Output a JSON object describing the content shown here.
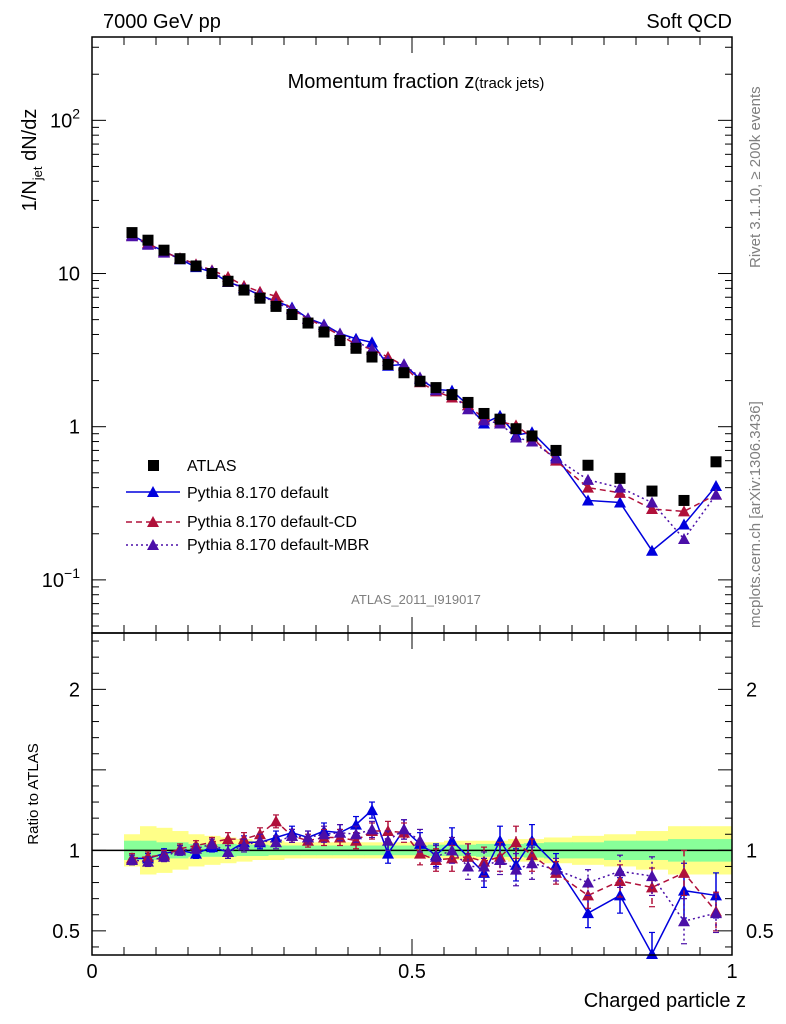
{
  "header": {
    "energy_label": "7000 GeV pp",
    "process_label": "Soft QCD"
  },
  "side_labels": {
    "rivet": "Rivet 3.1.10, ≥ 200k events",
    "mcplots": "mcplots.cern.ch [arXiv:1306.3436]"
  },
  "colors": {
    "atlas": "#000000",
    "default": "#0000dd",
    "cd": "#b0103a",
    "mbr": "#4b0fa8",
    "band_inner": "#88ff99",
    "band_outer": "#ffff88"
  },
  "chart_data": [
    {
      "type": "scatter",
      "title_main": "Momentum fraction z",
      "title_sub": "(track jets)",
      "ylabel_main": "1/N",
      "ylabel_sub": "jet",
      "ylabel_tail": " dN/dz",
      "analysis_id": "ATLAS_2011_I919017",
      "yscale": "log",
      "xlim": [
        0,
        1
      ],
      "ylim": [
        0.045,
        350
      ],
      "yticks": [
        {
          "value": 0.1,
          "base": "10",
          "exp": "−1"
        },
        {
          "value": 1,
          "base": "1",
          "exp": ""
        },
        {
          "value": 10,
          "base": "10",
          "exp": ""
        },
        {
          "value": 100,
          "base": "10",
          "exp": "2"
        }
      ],
      "x": [
        0.0625,
        0.0875,
        0.1125,
        0.1375,
        0.1625,
        0.1875,
        0.2125,
        0.2375,
        0.2625,
        0.2875,
        0.3125,
        0.3375,
        0.3625,
        0.3875,
        0.4125,
        0.4375,
        0.4625,
        0.4875,
        0.5125,
        0.5375,
        0.5625,
        0.5875,
        0.6125,
        0.6375,
        0.6625,
        0.6875,
        0.725,
        0.775,
        0.825,
        0.875,
        0.925,
        0.975
      ],
      "series": [
        {
          "name": "ATLAS",
          "style": "data",
          "values": [
            18.5,
            16.5,
            14.2,
            12.5,
            11.2,
            10.0,
            8.9,
            7.8,
            6.9,
            6.1,
            5.4,
            4.75,
            4.15,
            3.65,
            3.25,
            2.85,
            2.55,
            2.25,
            1.98,
            1.8,
            1.62,
            1.44,
            1.22,
            1.12,
            0.97,
            0.87,
            0.7,
            0.56,
            0.46,
            0.38,
            0.33,
            0.59
          ]
        },
        {
          "name": "Pythia 8.170 default",
          "style": "solid",
          "values": [
            17.8,
            15.6,
            14.0,
            12.4,
            11.0,
            10.2,
            8.8,
            8.1,
            7.2,
            6.6,
            6.0,
            5.1,
            4.65,
            4.05,
            3.75,
            3.55,
            2.5,
            2.55,
            2.05,
            1.75,
            1.72,
            1.38,
            1.05,
            1.18,
            0.88,
            0.92,
            0.64,
            0.33,
            0.32,
            0.155,
            0.23,
            0.41
          ]
        },
        {
          "name": "Pythia 8.170 default-CD",
          "style": "dashed",
          "values": [
            17.6,
            15.8,
            13.8,
            12.6,
            11.5,
            10.5,
            9.5,
            8.3,
            7.6,
            7.1,
            5.85,
            5.05,
            4.5,
            3.95,
            3.45,
            3.2,
            2.85,
            2.5,
            1.95,
            1.7,
            1.55,
            1.38,
            1.13,
            1.08,
            1.02,
            0.85,
            0.6,
            0.4,
            0.37,
            0.29,
            0.28,
            0.36
          ]
        },
        {
          "name": "Pythia 8.170 default-MBR",
          "style": "dotted",
          "values": [
            17.5,
            15.4,
            13.7,
            12.5,
            11.3,
            10.4,
            8.8,
            8.0,
            7.3,
            6.4,
            5.9,
            5.1,
            4.6,
            4.05,
            3.6,
            3.2,
            2.7,
            2.55,
            2.1,
            1.73,
            1.62,
            1.3,
            1.1,
            1.05,
            0.85,
            0.8,
            0.62,
            0.45,
            0.4,
            0.32,
            0.185,
            0.36
          ]
        }
      ],
      "legend_position": "lower-left"
    },
    {
      "type": "scatter",
      "ylabel": "Ratio to ATLAS",
      "xlabel": "Charged particle z",
      "xlim": [
        0,
        1
      ],
      "ylim": [
        0.35,
        2.35
      ],
      "xticks": [
        {
          "value": 0,
          "label": "0"
        },
        {
          "value": 0.5,
          "label": "0.5"
        },
        {
          "value": 1,
          "label": "1"
        }
      ],
      "yticks": [
        {
          "value": 0.5,
          "label": "0.5"
        },
        {
          "value": 1,
          "label": "1"
        },
        {
          "value": 2,
          "label": "2"
        }
      ],
      "band_inner": [
        0.06,
        0.06,
        0.05,
        0.05,
        0.04,
        0.04,
        0.04,
        0.035,
        0.035,
        0.03,
        0.03,
        0.03,
        0.03,
        0.03,
        0.03,
        0.03,
        0.03,
        0.03,
        0.03,
        0.035,
        0.035,
        0.035,
        0.04,
        0.04,
        0.04,
        0.045,
        0.05,
        0.05,
        0.06,
        0.06,
        0.07,
        0.07
      ],
      "band_outer": [
        0.1,
        0.15,
        0.14,
        0.12,
        0.1,
        0.09,
        0.08,
        0.07,
        0.06,
        0.06,
        0.05,
        0.05,
        0.05,
        0.05,
        0.05,
        0.05,
        0.05,
        0.05,
        0.05,
        0.05,
        0.06,
        0.06,
        0.06,
        0.06,
        0.07,
        0.07,
        0.08,
        0.09,
        0.1,
        0.12,
        0.15,
        0.15
      ],
      "series": [
        {
          "name": "Pythia 8.170 default",
          "style": "solid",
          "values": [
            0.95,
            0.95,
            0.98,
            1.0,
            0.98,
            1.02,
            0.99,
            1.05,
            1.05,
            1.08,
            1.11,
            1.08,
            1.12,
            1.11,
            1.16,
            1.25,
            0.98,
            1.13,
            1.04,
            0.97,
            1.06,
            0.96,
            0.86,
            1.06,
            0.91,
            1.06,
            0.91,
            0.61,
            0.72,
            0.35,
            0.75,
            0.72
          ],
          "errors": [
            0.03,
            0.03,
            0.03,
            0.03,
            0.03,
            0.03,
            0.04,
            0.04,
            0.04,
            0.04,
            0.04,
            0.04,
            0.05,
            0.05,
            0.05,
            0.05,
            0.06,
            0.06,
            0.07,
            0.07,
            0.08,
            0.08,
            0.09,
            0.09,
            0.1,
            0.1,
            0.07,
            0.09,
            0.11,
            0.14,
            0.17,
            0.14
          ]
        },
        {
          "name": "Pythia 8.170 default-CD",
          "style": "dashed",
          "values": [
            0.95,
            0.96,
            0.97,
            1.01,
            1.03,
            1.05,
            1.07,
            1.07,
            1.1,
            1.18,
            1.09,
            1.06,
            1.08,
            1.08,
            1.06,
            1.12,
            1.12,
            1.11,
            0.98,
            0.94,
            0.95,
            0.96,
            0.93,
            0.96,
            1.05,
            0.97,
            0.86,
            0.72,
            0.81,
            0.77,
            0.86,
            0.62
          ],
          "errors": [
            0.03,
            0.03,
            0.03,
            0.03,
            0.03,
            0.03,
            0.04,
            0.04,
            0.04,
            0.04,
            0.04,
            0.04,
            0.05,
            0.05,
            0.05,
            0.05,
            0.06,
            0.06,
            0.07,
            0.07,
            0.08,
            0.08,
            0.09,
            0.09,
            0.1,
            0.1,
            0.07,
            0.08,
            0.1,
            0.12,
            0.14,
            0.12
          ]
        },
        {
          "name": "Pythia 8.170 default-MBR",
          "style": "dotted",
          "values": [
            0.94,
            0.93,
            0.96,
            1.0,
            1.01,
            1.04,
            0.99,
            1.03,
            1.06,
            1.05,
            1.09,
            1.08,
            1.1,
            1.11,
            1.1,
            1.13,
            1.06,
            1.13,
            1.06,
            0.96,
            1.0,
            0.9,
            0.9,
            0.94,
            0.88,
            0.92,
            0.88,
            0.8,
            0.87,
            0.84,
            0.56,
            0.61
          ],
          "errors": [
            0.03,
            0.03,
            0.03,
            0.03,
            0.03,
            0.03,
            0.04,
            0.04,
            0.04,
            0.04,
            0.04,
            0.04,
            0.05,
            0.05,
            0.05,
            0.05,
            0.06,
            0.06,
            0.07,
            0.07,
            0.08,
            0.08,
            0.09,
            0.09,
            0.1,
            0.1,
            0.07,
            0.08,
            0.1,
            0.12,
            0.14,
            0.12
          ]
        }
      ]
    }
  ]
}
